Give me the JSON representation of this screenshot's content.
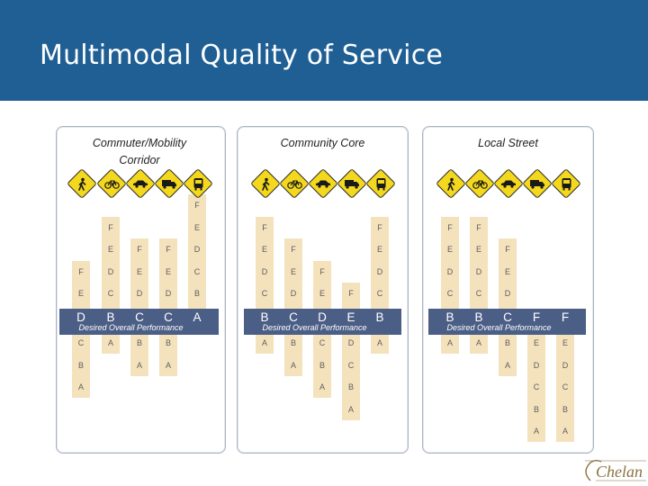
{
  "slide": {
    "title": "Multimodal Quality of Service"
  },
  "colors": {
    "header": "#1f5f94",
    "band": "#4b5e86",
    "column": "#f4e2bc",
    "sign": "#f3d81e"
  },
  "mode_icons": [
    "pedestrian-icon",
    "bicycle-icon",
    "car-icon",
    "truck-icon",
    "bus-icon"
  ],
  "band_label": "Desired Overall Performance",
  "panels": [
    {
      "title": "Commuter/Mobility Corridor",
      "columns": [
        {
          "mode": "pedestrian",
          "grade": "D",
          "above": [
            "F",
            "E"
          ],
          "below": [
            "C",
            "B",
            "A"
          ]
        },
        {
          "mode": "bicycle",
          "grade": "B",
          "above": [
            "F",
            "E",
            "D",
            "C"
          ],
          "below": [
            "A"
          ]
        },
        {
          "mode": "car",
          "grade": "C",
          "above": [
            "F",
            "E",
            "D"
          ],
          "below": [
            "B",
            "A"
          ]
        },
        {
          "mode": "truck",
          "grade": "C",
          "above": [
            "F",
            "E",
            "D"
          ],
          "below": [
            "B",
            "A"
          ]
        },
        {
          "mode": "bus",
          "grade": "A",
          "above": [
            "F",
            "E",
            "D",
            "C",
            "B"
          ],
          "below": []
        }
      ]
    },
    {
      "title": "Community Core",
      "columns": [
        {
          "mode": "pedestrian",
          "grade": "B",
          "above": [
            "F",
            "E",
            "D",
            "C"
          ],
          "below": [
            "A"
          ]
        },
        {
          "mode": "bicycle",
          "grade": "C",
          "above": [
            "F",
            "E",
            "D"
          ],
          "below": [
            "B",
            "A"
          ]
        },
        {
          "mode": "car",
          "grade": "D",
          "above": [
            "F",
            "E"
          ],
          "below": [
            "C",
            "B",
            "A"
          ]
        },
        {
          "mode": "truck",
          "grade": "E",
          "above": [
            "F"
          ],
          "below": [
            "D",
            "C",
            "B",
            "A"
          ]
        },
        {
          "mode": "bus",
          "grade": "B",
          "above": [
            "F",
            "E",
            "D",
            "C"
          ],
          "below": [
            "A"
          ]
        }
      ]
    },
    {
      "title": "Local Street",
      "columns": [
        {
          "mode": "pedestrian",
          "grade": "B",
          "above": [
            "F",
            "E",
            "D",
            "C"
          ],
          "below": [
            "A"
          ]
        },
        {
          "mode": "bicycle",
          "grade": "B",
          "above": [
            "F",
            "E",
            "D",
            "C"
          ],
          "below": [
            "A"
          ]
        },
        {
          "mode": "car",
          "grade": "C",
          "above": [
            "F",
            "E",
            "D"
          ],
          "below": [
            "B",
            "A"
          ]
        },
        {
          "mode": "truck",
          "grade": "F",
          "above": [],
          "below": [
            "E",
            "D",
            "C",
            "B",
            "A"
          ]
        },
        {
          "mode": "bus",
          "grade": "F",
          "above": [],
          "below": [
            "E",
            "D",
            "C",
            "B",
            "A"
          ]
        }
      ]
    }
  ],
  "logo": {
    "text": "Chelan"
  }
}
